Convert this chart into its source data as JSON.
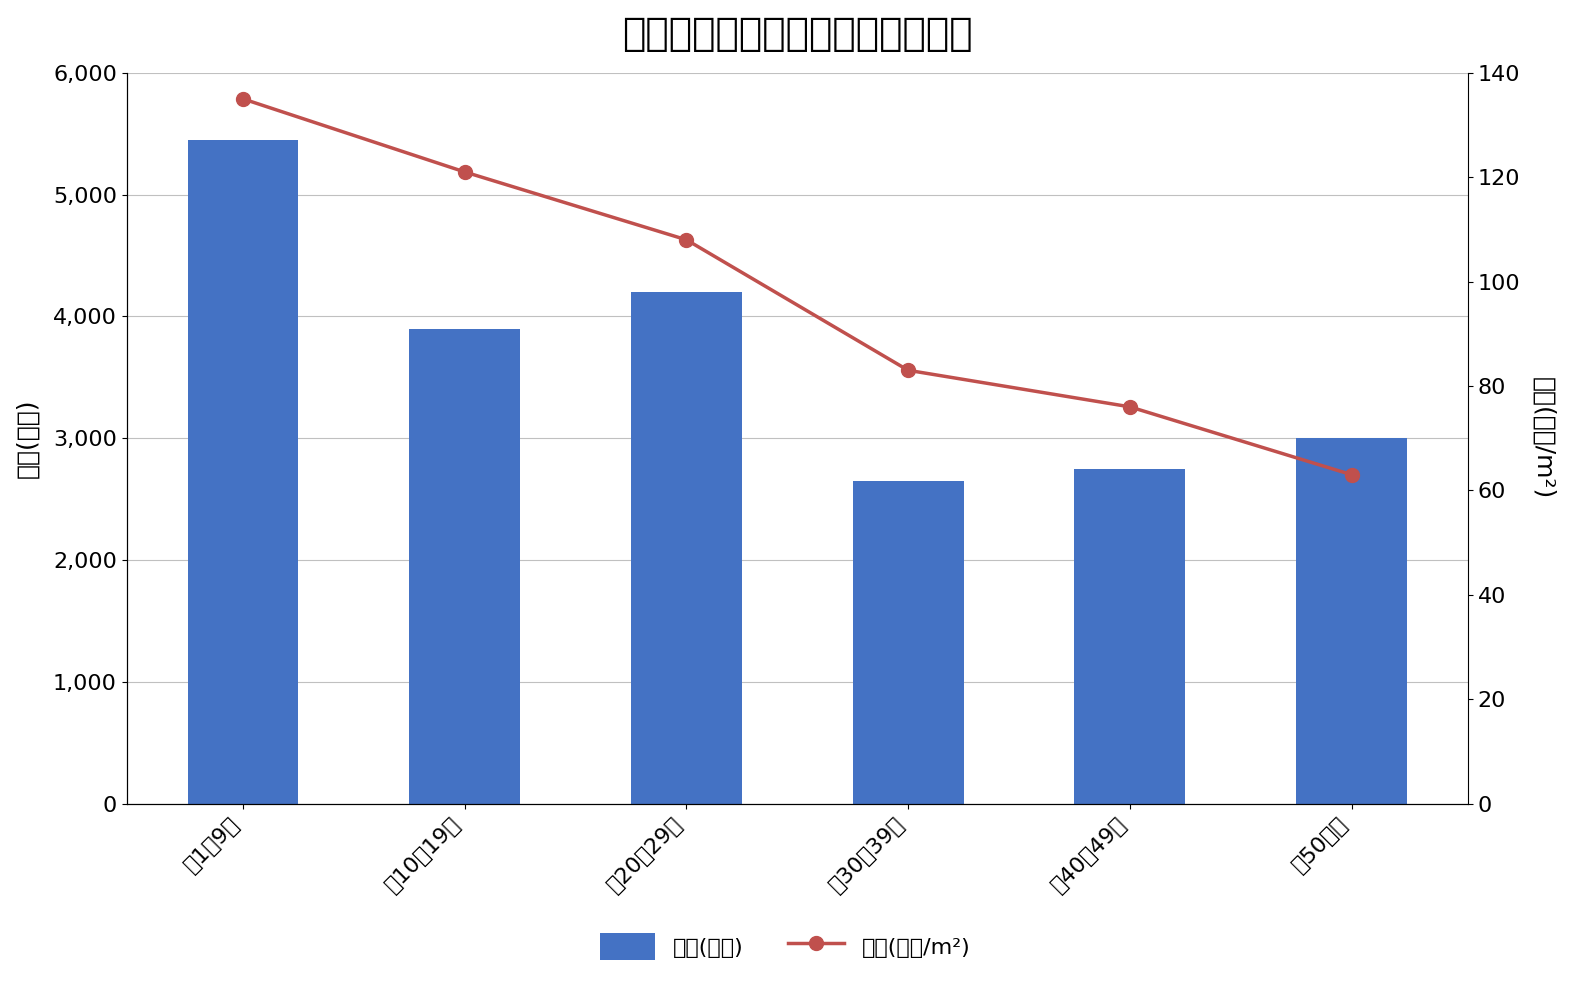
{
  "title": "新宿区の築年数別マンション価格",
  "categories": [
    "築1～9年",
    "築10～19年",
    "築20～29年",
    "築30～39年",
    "築40～49年",
    "築50年～"
  ],
  "bar_values": [
    5450,
    3900,
    4200,
    2650,
    2750,
    3000
  ],
  "line_values": [
    135,
    121,
    108,
    83,
    76,
    63
  ],
  "bar_color": "#4472C4",
  "line_color": "#C0504D",
  "ylabel_left": "価格(万円)",
  "ylabel_right": "単価(万円/m²)",
  "ylim_left": [
    0,
    6000
  ],
  "ylim_right": [
    0,
    140
  ],
  "yticks_left": [
    0,
    1000,
    2000,
    3000,
    4000,
    5000,
    6000
  ],
  "yticks_right": [
    0,
    20,
    40,
    60,
    80,
    100,
    120,
    140
  ],
  "legend_bar": "価格(万円)",
  "legend_line": "単価(万円/m²)",
  "background_color": "#ffffff",
  "title_fontsize": 28,
  "axis_fontsize": 18,
  "tick_fontsize": 16,
  "legend_fontsize": 16
}
